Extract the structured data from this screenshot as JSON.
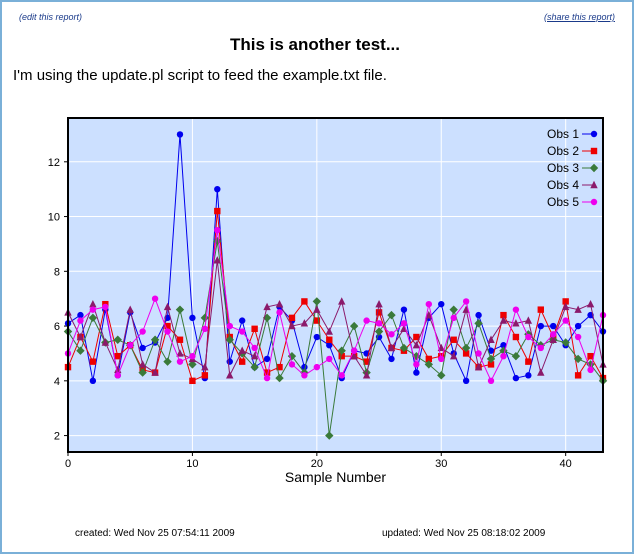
{
  "links": {
    "edit": "(edit this report)",
    "share": "(share this report)"
  },
  "report": {
    "title": "This is another test...",
    "description": "I'm using the update.pl script to feed the example.txt file."
  },
  "footer": {
    "created": "created: Wed Nov 25 07:54:11 2009",
    "updated": "updated: Wed Nov 25 08:18:02 2009"
  },
  "chart_data": {
    "type": "line",
    "xlabel": "Sample Number",
    "ylabel": "",
    "xlim": [
      0,
      43
    ],
    "ylim": [
      1.4,
      13.6
    ],
    "xticks": [
      0,
      10,
      20,
      30,
      40
    ],
    "yticks": [
      2,
      4,
      6,
      8,
      10,
      12
    ],
    "grid": true,
    "legend": "top-right",
    "x": [
      0,
      1,
      2,
      3,
      4,
      5,
      6,
      7,
      8,
      9,
      10,
      11,
      12,
      13,
      14,
      15,
      16,
      17,
      18,
      19,
      20,
      21,
      22,
      23,
      24,
      25,
      26,
      27,
      28,
      29,
      30,
      31,
      32,
      33,
      34,
      35,
      36,
      37,
      38,
      39,
      40,
      41,
      42,
      43
    ],
    "series": [
      {
        "name": "Obs 1",
        "color": "#0000ee",
        "marker": "circle",
        "values": [
          6.1,
          6.4,
          4.0,
          6.6,
          4.2,
          6.5,
          5.2,
          5.4,
          6.3,
          13.0,
          6.3,
          4.1,
          11.0,
          4.7,
          6.2,
          4.5,
          4.8,
          6.7,
          6.2,
          4.5,
          5.6,
          5.3,
          4.1,
          5.1,
          5.0,
          5.6,
          4.8,
          6.6,
          4.3,
          6.3,
          6.8,
          5.0,
          4.0,
          6.4,
          5.1,
          5.3,
          4.1,
          4.2,
          6.0,
          6.0,
          5.3,
          6.0,
          6.4,
          5.8
        ]
      },
      {
        "name": "Obs 2",
        "color": "#ee0000",
        "marker": "square",
        "values": [
          4.5,
          5.6,
          4.7,
          6.8,
          4.9,
          5.3,
          4.4,
          4.3,
          6.0,
          5.5,
          4.0,
          4.2,
          10.2,
          5.6,
          4.7,
          5.9,
          4.3,
          4.5,
          6.3,
          6.9,
          6.2,
          5.5,
          4.9,
          4.9,
          4.7,
          6.5,
          5.2,
          5.1,
          5.6,
          4.8,
          4.9,
          5.5,
          5.0,
          4.5,
          4.6,
          6.4,
          5.6,
          4.7,
          6.6,
          5.6,
          6.9,
          4.2,
          4.9,
          4.1
        ]
      },
      {
        "name": "Obs 3",
        "color": "#3a7a3a",
        "marker": "diamond",
        "values": [
          5.8,
          5.1,
          6.3,
          5.4,
          5.5,
          5.3,
          4.3,
          5.5,
          4.7,
          6.6,
          4.6,
          6.3,
          9.1,
          5.5,
          5.0,
          4.5,
          6.3,
          4.1,
          4.9,
          4.3,
          6.9,
          2.0,
          5.1,
          6.0,
          4.3,
          5.8,
          6.4,
          5.2,
          4.9,
          4.6,
          4.2,
          6.6,
          5.2,
          6.1,
          4.8,
          5.1,
          4.9,
          5.7,
          5.3,
          5.5,
          5.4,
          4.8,
          4.6,
          4.0
        ]
      },
      {
        "name": "Obs 4",
        "color": "#8b1a6b",
        "marker": "triangle",
        "values": [
          6.5,
          5.6,
          6.8,
          5.4,
          4.4,
          6.6,
          4.6,
          4.3,
          6.7,
          5.0,
          4.8,
          4.5,
          8.4,
          4.2,
          5.1,
          4.9,
          6.7,
          6.8,
          6.0,
          6.1,
          6.6,
          5.8,
          6.9,
          4.9,
          4.2,
          6.8,
          5.2,
          5.9,
          5.3,
          6.4,
          5.2,
          4.9,
          6.6,
          4.5,
          5.5,
          6.2,
          6.1,
          6.2,
          4.3,
          5.5,
          6.7,
          6.6,
          6.8,
          4.6
        ]
      },
      {
        "name": "Obs 5",
        "color": "#ee00ee",
        "marker": "circle",
        "values": [
          5.0,
          6.2,
          6.6,
          6.7,
          4.2,
          5.3,
          5.8,
          7.0,
          5.8,
          4.7,
          4.9,
          5.9,
          9.5,
          6.0,
          5.8,
          5.2,
          4.1,
          6.5,
          4.6,
          4.2,
          4.5,
          4.8,
          4.2,
          5.1,
          6.2,
          6.1,
          5.7,
          6.1,
          4.6,
          6.8,
          4.8,
          6.3,
          6.9,
          5.0,
          4.0,
          4.9,
          6.6,
          5.6,
          5.2,
          5.7,
          6.2,
          5.6,
          4.4,
          6.4
        ]
      }
    ]
  }
}
